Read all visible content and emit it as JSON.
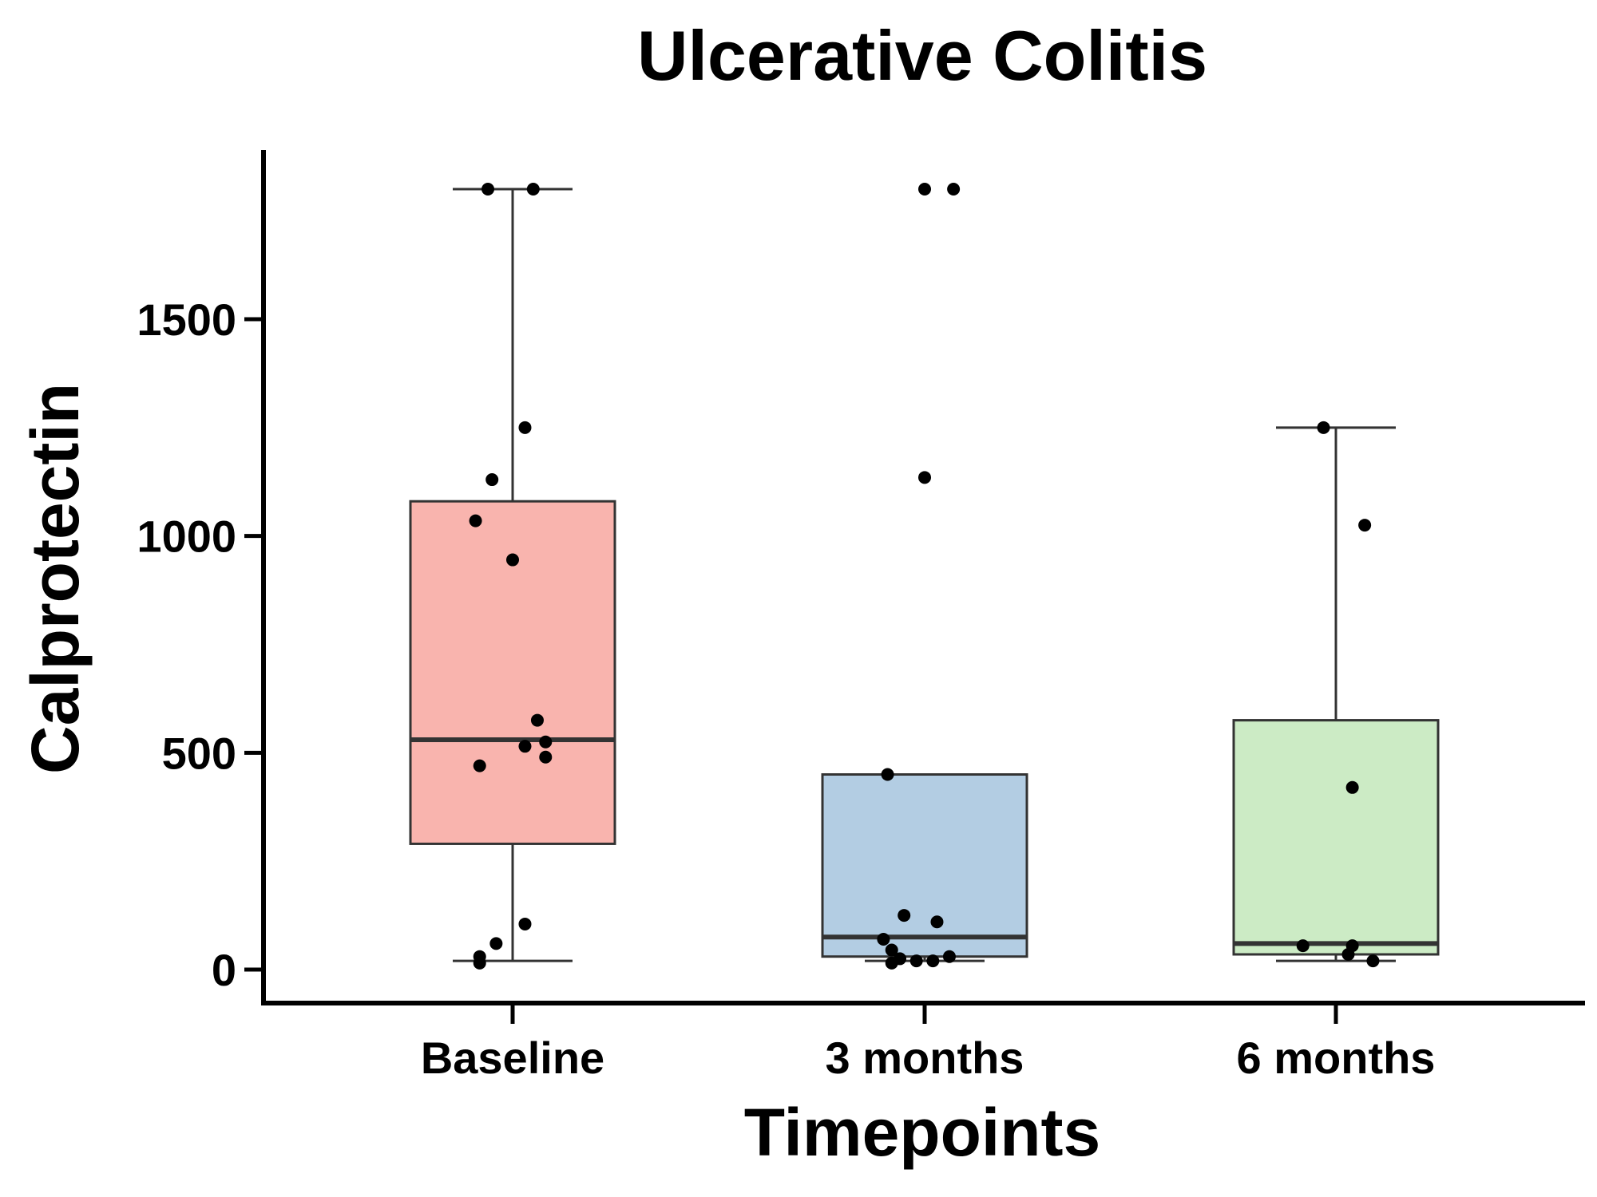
{
  "chart_data": {
    "type": "box",
    "title": "Ulcerative Colitis",
    "xlabel": "Timepoints",
    "ylabel": "Calprotectin",
    "ylim": [
      -75,
      1900
    ],
    "yticks": [
      0,
      500,
      1000,
      1500
    ],
    "grid": false,
    "legend": "none",
    "categories": [
      "Baseline",
      "3 months",
      "6 months"
    ],
    "boxes": [
      {
        "category": "Baseline",
        "color": "#F9B4AE",
        "whisker_low": 20,
        "q1": 290,
        "median": 530,
        "q3": 1080,
        "whisker_high": 1800,
        "points": [
          {
            "dx": -0.06,
            "y": 1800
          },
          {
            "dx": 0.05,
            "y": 1800
          },
          {
            "dx": 0.03,
            "y": 1250
          },
          {
            "dx": -0.05,
            "y": 1130
          },
          {
            "dx": -0.09,
            "y": 1035
          },
          {
            "dx": 0.0,
            "y": 945
          },
          {
            "dx": 0.06,
            "y": 575
          },
          {
            "dx": 0.08,
            "y": 525
          },
          {
            "dx": 0.03,
            "y": 515
          },
          {
            "dx": 0.08,
            "y": 490
          },
          {
            "dx": -0.08,
            "y": 470
          },
          {
            "dx": 0.03,
            "y": 105
          },
          {
            "dx": -0.04,
            "y": 60
          },
          {
            "dx": -0.08,
            "y": 30
          },
          {
            "dx": -0.08,
            "y": 15
          }
        ]
      },
      {
        "category": "3 months",
        "color": "#B3CDE3",
        "whisker_low": 20,
        "q1": 30,
        "median": 75,
        "q3": 450,
        "whisker_high": 450,
        "points": [
          {
            "dx": 0.0,
            "y": 1800
          },
          {
            "dx": 0.07,
            "y": 1800
          },
          {
            "dx": 0.0,
            "y": 1135
          },
          {
            "dx": -0.09,
            "y": 450
          },
          {
            "dx": -0.05,
            "y": 125
          },
          {
            "dx": 0.03,
            "y": 110
          },
          {
            "dx": -0.1,
            "y": 70
          },
          {
            "dx": -0.08,
            "y": 45
          },
          {
            "dx": 0.06,
            "y": 30
          },
          {
            "dx": -0.06,
            "y": 25
          },
          {
            "dx": -0.02,
            "y": 20
          },
          {
            "dx": 0.02,
            "y": 20
          },
          {
            "dx": -0.08,
            "y": 15
          }
        ]
      },
      {
        "category": "6 months",
        "color": "#CCEBC5",
        "whisker_low": 20,
        "q1": 35,
        "median": 60,
        "q3": 575,
        "whisker_high": 1250,
        "points": [
          {
            "dx": -0.03,
            "y": 1250
          },
          {
            "dx": 0.07,
            "y": 1025
          },
          {
            "dx": 0.04,
            "y": 420
          },
          {
            "dx": -0.08,
            "y": 55
          },
          {
            "dx": 0.04,
            "y": 55
          },
          {
            "dx": 0.03,
            "y": 35
          },
          {
            "dx": 0.09,
            "y": 20
          }
        ]
      }
    ]
  }
}
